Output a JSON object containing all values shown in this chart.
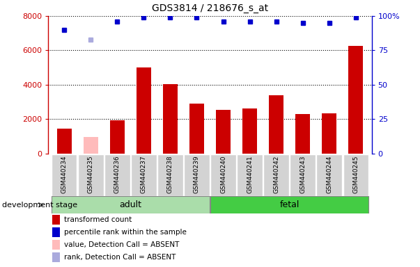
{
  "title": "GDS3814 / 218676_s_at",
  "samples": [
    "GSM440234",
    "GSM440235",
    "GSM440236",
    "GSM440237",
    "GSM440238",
    "GSM440239",
    "GSM440240",
    "GSM440241",
    "GSM440242",
    "GSM440243",
    "GSM440244",
    "GSM440245"
  ],
  "transformed_count": [
    1450,
    null,
    1950,
    5000,
    4050,
    2900,
    2550,
    2620,
    3380,
    2300,
    2330,
    6250
  ],
  "transformed_count_absent": [
    null,
    950,
    null,
    null,
    null,
    null,
    null,
    null,
    null,
    null,
    null,
    null
  ],
  "percentile_rank": [
    90,
    null,
    96,
    99,
    99,
    99,
    96,
    96,
    96,
    95,
    95,
    99
  ],
  "percentile_rank_absent": [
    null,
    83,
    null,
    null,
    null,
    null,
    null,
    null,
    null,
    null,
    null,
    null
  ],
  "absent_flags": [
    false,
    true,
    false,
    false,
    false,
    false,
    false,
    false,
    false,
    false,
    false,
    false
  ],
  "ylim_left": [
    0,
    8000
  ],
  "ylim_right": [
    0,
    100
  ],
  "yticks_left": [
    0,
    2000,
    4000,
    6000,
    8000
  ],
  "yticks_right": [
    0,
    25,
    50,
    75,
    100
  ],
  "bar_color_present": "#cc0000",
  "bar_color_absent": "#ffbbbb",
  "dot_color_present": "#0000cc",
  "dot_color_absent": "#aaaadd",
  "bar_width": 0.55,
  "legend_labels": [
    "transformed count",
    "percentile rank within the sample",
    "value, Detection Call = ABSENT",
    "rank, Detection Call = ABSENT"
  ],
  "legend_colors": [
    "#cc0000",
    "#0000cc",
    "#ffbbbb",
    "#aaaadd"
  ],
  "development_stage_label": "development stage",
  "adult_color": "#aaddaa",
  "fetal_color": "#44cc44",
  "background_color": "#ffffff",
  "grid_color": "#000000",
  "left_spine_color": "#cc0000",
  "right_spine_color": "#0000cc",
  "adult_samples": [
    0,
    5
  ],
  "fetal_samples": [
    6,
    11
  ],
  "adult_label": "adult",
  "fetal_label": "fetal"
}
